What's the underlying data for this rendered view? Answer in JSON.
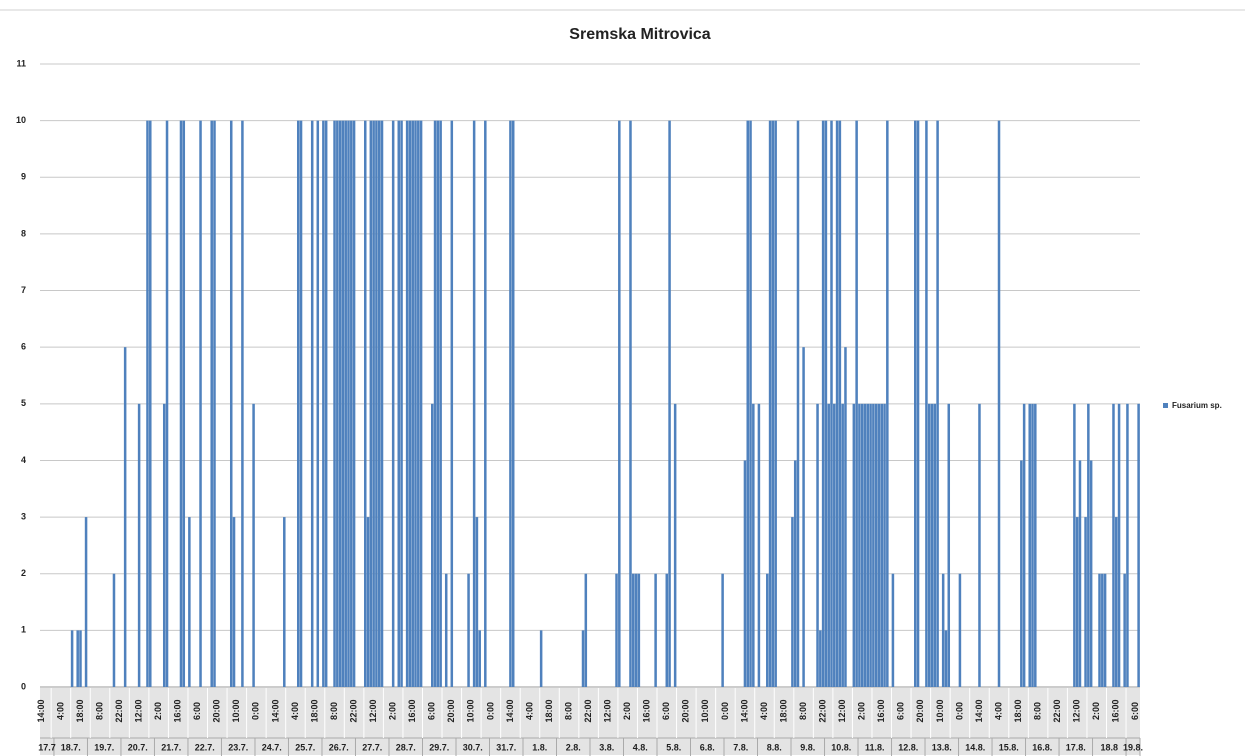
{
  "chart_data": {
    "type": "bar",
    "title": "Sremska Mitrovica",
    "series_name": "Fusarium sp.",
    "color": "#4f81bd",
    "ylim": [
      0,
      11
    ],
    "yticks": [
      0,
      1,
      2,
      3,
      4,
      5,
      6,
      7,
      8,
      9,
      10,
      11
    ],
    "grid": true,
    "legend": "right",
    "dates": [
      "17.7",
      "18.7.",
      "19.7.",
      "20.7.",
      "21.7.",
      "22.7.",
      "23.7.",
      "24.7.",
      "25.7.",
      "26.7.",
      "27.7.",
      "28.7.",
      "29.7.",
      "30.7.",
      "31.7.",
      "1.8.",
      "2.8.",
      "3.8.",
      "4.8.",
      "5.8.",
      "6.8.",
      "7.8.",
      "8.8.",
      "9.8.",
      "10.8.",
      "11.8.",
      "12.8.",
      "13.8.",
      "14.8.",
      "15.8.",
      "16.8.",
      "17.8.",
      "18.8",
      "19.8."
    ],
    "categories": [
      "14:00",
      null,
      null,
      null,
      null,
      null,
      null,
      "4:00",
      null,
      null,
      null,
      null,
      null,
      null,
      "18:00",
      null,
      null,
      null,
      null,
      null,
      null,
      "8:00",
      null,
      null,
      null,
      null,
      null,
      null,
      "22:00",
      null,
      null,
      null,
      null,
      null,
      null,
      "12:00",
      null,
      null,
      null,
      null,
      null,
      null,
      "2:00",
      null,
      null,
      null,
      null,
      null,
      null,
      "16:00",
      null,
      null,
      null,
      null,
      null,
      null,
      "6:00",
      null,
      null,
      null,
      null,
      null,
      null,
      "20:00",
      null,
      null,
      null,
      null,
      null,
      null,
      "10:00",
      null,
      null,
      null,
      null,
      null,
      null,
      "0:00",
      null,
      null,
      null,
      null,
      null,
      null,
      "14:00",
      null,
      null,
      null,
      null,
      null,
      null,
      "4:00",
      null,
      null,
      null,
      null,
      null,
      null,
      "18:00",
      null,
      null,
      null,
      null,
      null,
      null,
      "8:00",
      null,
      null,
      null,
      null,
      null,
      null,
      "22:00",
      null,
      null,
      null,
      null,
      null,
      null,
      "12:00",
      null,
      null,
      null,
      null,
      null,
      null,
      "2:00",
      null,
      null,
      null,
      null,
      null,
      null,
      "16:00",
      null,
      null,
      null,
      null,
      null,
      null,
      "6:00",
      null,
      null,
      null,
      null,
      null,
      null,
      "20:00",
      null,
      null,
      null,
      null,
      null,
      null,
      "10:00",
      null,
      null,
      null,
      null,
      null,
      null,
      "0:00",
      null,
      null,
      null,
      null,
      null,
      null,
      "14:00",
      null,
      null,
      null,
      null,
      null,
      null,
      "4:00",
      null,
      null,
      null,
      null,
      null,
      null,
      "18:00",
      null,
      null,
      null,
      null,
      null,
      null,
      "8:00",
      null,
      null,
      null,
      null,
      null,
      null,
      "22:00",
      null,
      null,
      null,
      null,
      null,
      null,
      "12:00",
      null,
      null,
      null,
      null,
      null,
      null,
      "2:00",
      null,
      null,
      null,
      null,
      null,
      null,
      "16:00",
      null,
      null,
      null,
      null,
      null,
      null,
      "6:00",
      null,
      null,
      null,
      null,
      null,
      null,
      "20:00",
      null,
      null,
      null,
      null,
      null,
      null,
      "10:00",
      null,
      null,
      null,
      null,
      null,
      null,
      "0:00",
      null,
      null,
      null,
      null,
      null,
      null,
      "14:00",
      null,
      null,
      null,
      null,
      null,
      null,
      "4:00",
      null,
      null,
      null,
      null,
      null,
      null,
      "18:00",
      null,
      null,
      null,
      null,
      null,
      null,
      "8:00",
      null,
      null,
      null,
      null,
      null,
      null,
      "22:00",
      null,
      null,
      null,
      null,
      null,
      null,
      "12:00",
      null,
      null,
      null,
      null,
      null,
      null,
      "2:00",
      null,
      null,
      null,
      null,
      null,
      null,
      "16:00",
      null,
      null,
      null,
      null,
      null,
      null,
      "6:00",
      null,
      null,
      null,
      null,
      null,
      null,
      "20:00",
      null,
      null,
      null,
      null,
      null,
      null,
      "10:00",
      null,
      null,
      null,
      null,
      null,
      null,
      "0:00",
      null,
      null,
      null,
      null,
      null,
      null,
      "14:00",
      null,
      null,
      null,
      null,
      null,
      null,
      "4:00",
      null,
      null,
      null,
      null,
      null,
      null,
      "18:00",
      null,
      null,
      null,
      null,
      null,
      null,
      "8:00",
      null,
      null,
      null,
      null,
      null,
      null,
      "22:00",
      null,
      null,
      null,
      null,
      null,
      null,
      "12:00",
      null,
      null,
      null,
      null,
      null,
      null,
      "2:00",
      null,
      null,
      null,
      null,
      null,
      null,
      "16:00",
      null,
      null,
      null,
      null,
      null,
      null,
      "6:00",
      null
    ],
    "values": [
      0,
      0,
      0,
      0,
      0,
      0,
      0,
      0,
      0,
      0,
      0,
      1,
      0,
      1,
      1,
      0,
      3,
      0,
      0,
      0,
      0,
      0,
      0,
      0,
      0,
      0,
      2,
      0,
      0,
      0,
      6,
      0,
      0,
      0,
      0,
      5,
      0,
      0,
      10,
      10,
      0,
      0,
      0,
      0,
      5,
      10,
      0,
      0,
      0,
      0,
      10,
      10,
      0,
      3,
      0,
      0,
      0,
      10,
      0,
      0,
      0,
      10,
      10,
      0,
      0,
      0,
      0,
      0,
      10,
      3,
      0,
      0,
      10,
      0,
      0,
      0,
      5,
      0,
      0,
      0,
      0,
      0,
      0,
      0,
      0,
      0,
      0,
      3,
      0,
      0,
      0,
      0,
      10,
      10,
      0,
      0,
      0,
      10,
      0,
      10,
      0,
      10,
      10,
      0,
      0,
      10,
      10,
      10,
      10,
      10,
      10,
      10,
      10,
      0,
      0,
      0,
      10,
      3,
      10,
      10,
      10,
      10,
      10,
      0,
      0,
      0,
      10,
      0,
      10,
      10,
      0,
      10,
      10,
      10,
      10,
      10,
      10,
      0,
      0,
      0,
      5,
      10,
      10,
      10,
      0,
      2,
      0,
      10,
      0,
      0,
      0,
      0,
      0,
      2,
      0,
      10,
      3,
      1,
      0,
      10,
      0,
      0,
      0,
      0,
      0,
      0,
      0,
      0,
      10,
      10,
      0,
      0,
      0,
      0,
      0,
      0,
      0,
      0,
      0,
      1,
      0,
      0,
      0,
      0,
      0,
      0,
      0,
      0,
      0,
      0,
      0,
      0,
      0,
      0,
      1,
      2,
      0,
      0,
      0,
      0,
      0,
      0,
      0,
      0,
      0,
      0,
      2,
      10,
      0,
      0,
      0,
      10,
      2,
      2,
      2,
      0,
      0,
      0,
      0,
      0,
      2,
      0,
      0,
      0,
      2,
      10,
      0,
      5,
      0,
      0,
      0,
      0,
      0,
      0,
      0,
      0,
      0,
      0,
      0,
      0,
      0,
      0,
      0,
      0,
      2,
      0,
      0,
      0,
      0,
      0,
      0,
      0,
      4,
      10,
      10,
      5,
      0,
      5,
      0,
      0,
      2,
      10,
      10,
      10,
      0,
      0,
      0,
      0,
      0,
      3,
      4,
      10,
      0,
      6,
      0,
      0,
      0,
      0,
      5,
      1,
      10,
      10,
      5,
      10,
      5,
      10,
      10,
      5,
      6,
      0,
      0,
      5,
      10,
      5,
      5,
      5,
      5,
      5,
      5,
      5,
      5,
      5,
      5,
      10,
      0,
      2,
      0,
      0,
      0,
      0,
      0,
      0,
      0,
      10,
      10,
      0,
      0,
      10,
      5,
      5,
      5,
      10,
      0,
      2,
      1,
      5,
      0,
      0,
      0,
      2,
      0,
      0,
      0,
      0,
      0,
      0,
      5,
      0,
      0,
      0,
      0,
      0,
      0,
      10,
      0,
      0,
      0,
      0,
      0,
      0,
      0,
      4,
      5,
      0,
      5,
      5,
      5,
      0,
      0,
      0,
      0,
      0,
      0,
      0,
      0,
      0,
      0,
      0,
      0,
      0,
      5,
      3,
      4,
      0,
      3,
      5,
      4,
      0,
      0,
      2,
      2,
      2,
      0,
      0,
      5,
      3,
      5,
      0,
      2,
      5,
      0,
      0,
      0,
      5
    ]
  }
}
